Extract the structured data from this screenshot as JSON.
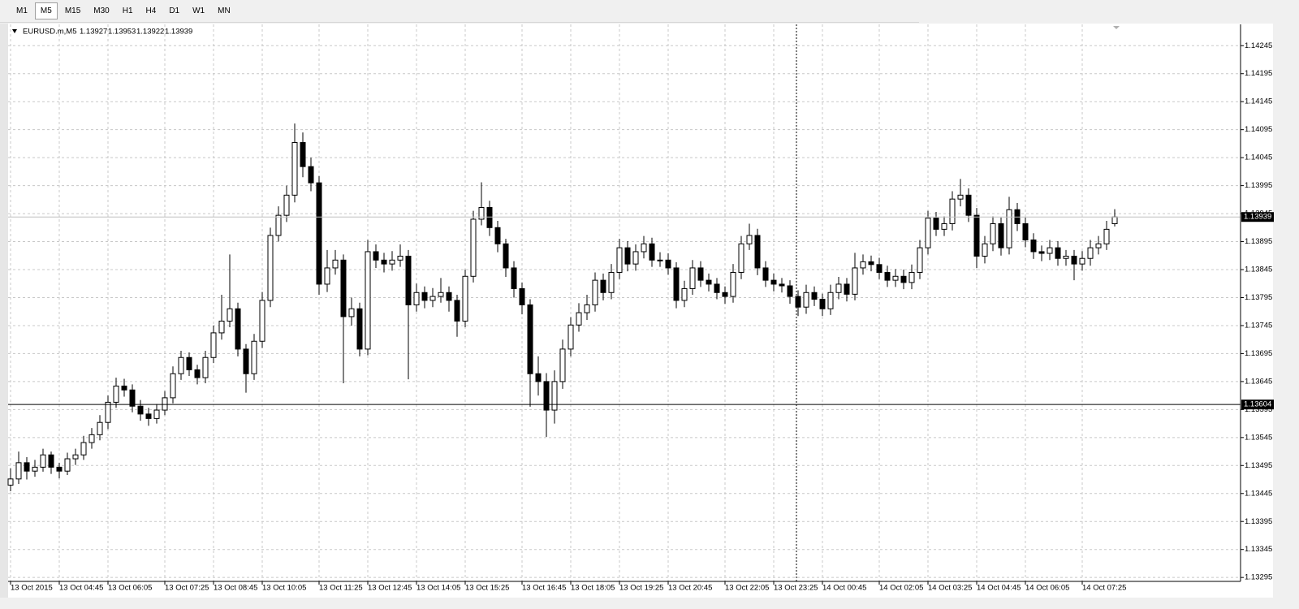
{
  "toolbar": {
    "timeframes": [
      "M1",
      "M5",
      "M15",
      "M30",
      "H1",
      "H4",
      "D1",
      "W1",
      "MN"
    ],
    "active": "M5"
  },
  "chart_data": {
    "type": "candlestick",
    "symbol": "EURUSD.m,M5",
    "bull_color": "#ffffff",
    "bear_color": "#000000",
    "wick_color": "#000000",
    "grid": true,
    "ylim": [
      1.13288,
      1.14286
    ],
    "yticks": [
      1.14245,
      1.14195,
      1.14145,
      1.14095,
      1.14045,
      1.13995,
      1.13945,
      1.13895,
      1.13845,
      1.13795,
      1.13745,
      1.13695,
      1.13645,
      1.13595,
      1.13545,
      1.13495,
      1.13445,
      1.13395,
      1.13345,
      1.13295
    ],
    "xlim": [
      -0.3,
      151.5
    ],
    "xticks": [
      {
        "value": 0,
        "label": "13 Oct 2015"
      },
      {
        "value": 6,
        "label": "13 Oct 04:45"
      },
      {
        "value": 12,
        "label": "13 Oct 06:05"
      },
      {
        "value": 19,
        "label": "13 Oct 07:25"
      },
      {
        "value": 25,
        "label": "13 Oct 08:45"
      },
      {
        "value": 31,
        "label": "13 Oct 10:05"
      },
      {
        "value": 38,
        "label": "13 Oct 11:25"
      },
      {
        "value": 44,
        "label": "13 Oct 12:45"
      },
      {
        "value": 50,
        "label": "13 Oct 14:05"
      },
      {
        "value": 56,
        "label": "13 Oct 15:25"
      },
      {
        "value": 63,
        "label": "13 Oct 16:45"
      },
      {
        "value": 69,
        "label": "13 Oct 18:05"
      },
      {
        "value": 75,
        "label": "13 Oct 19:25"
      },
      {
        "value": 81,
        "label": "13 Oct 20:45"
      },
      {
        "value": 88,
        "label": "13 Oct 22:05"
      },
      {
        "value": 94,
        "label": "13 Oct 23:25"
      },
      {
        "value": 100,
        "label": "14 Oct 00:45"
      },
      {
        "value": 107,
        "label": "14 Oct 02:05"
      },
      {
        "value": 113,
        "label": "14 Oct 03:25"
      },
      {
        "value": 119,
        "label": "14 Oct 04:45"
      },
      {
        "value": 125,
        "label": "14 Oct 06:05"
      },
      {
        "value": 132,
        "label": "14 Oct 07:25"
      }
    ],
    "level_line": 1.13604,
    "open": [
      1.1346,
      1.13471,
      1.135,
      1.13485,
      1.13492,
      1.13514,
      1.13492,
      1.13485,
      1.13507,
      1.13514,
      1.13536,
      1.1355,
      1.13572,
      1.13608,
      1.13637,
      1.1363,
      1.13601,
      1.13587,
      1.13579,
      1.13594,
      1.13616,
      1.13659,
      1.13688,
      1.13666,
      1.13652,
      1.13688,
      1.13732,
      1.13753,
      1.13775,
      1.13703,
      1.13659,
      1.13717,
      1.1379,
      1.13906,
      1.13942,
      1.13978,
      1.14072,
      1.14029,
      1.14,
      1.13819,
      1.13848,
      1.13862,
      1.13761,
      1.13775,
      1.13703,
      1.13877,
      1.13862,
      1.13855,
      1.13862,
      1.13869,
      1.13782,
      1.13804,
      1.1379,
      1.13797,
      1.13804,
      1.1379,
      1.13753,
      1.13833,
      1.13935,
      1.13956,
      1.1392,
      1.13891,
      1.13848,
      1.13811,
      1.13782,
      1.13659,
      1.13645,
      1.13594,
      1.13645,
      1.13703,
      1.13746,
      1.13768,
      1.13782,
      1.13826,
      1.13804,
      1.1384,
      1.13884,
      1.13855,
      1.13877,
      1.13891,
      1.13862,
      1.13862,
      1.13848,
      1.1379,
      1.13811,
      1.13848,
      1.13826,
      1.13819,
      1.13804,
      1.13797,
      1.1384,
      1.13891,
      1.13906,
      1.13848,
      1.13826,
      1.13819,
      1.13816,
      1.13797,
      1.13778,
      1.13804,
      1.13792,
      1.13775,
      1.13804,
      1.13819,
      1.13801,
      1.13848,
      1.13859,
      1.13854,
      1.1384,
      1.13826,
      1.13833,
      1.13822,
      1.1384,
      1.13884,
      1.13937,
      1.13917,
      1.13927,
      1.13971,
      1.13978,
      1.13942,
      1.13869,
      1.13891,
      1.13927,
      1.13884,
      1.13952,
      1.13927,
      1.13898,
      1.13877,
      1.13874,
      1.13884,
      1.13865,
      1.13869,
      1.13855,
      1.13865,
      1.13884,
      1.13891,
      1.13927
    ],
    "high": [
      1.1349,
      1.1352,
      1.1351,
      1.13505,
      1.13525,
      1.1352,
      1.135,
      1.13518,
      1.13525,
      1.13548,
      1.13562,
      1.13585,
      1.1362,
      1.13652,
      1.1365,
      1.1364,
      1.13612,
      1.13598,
      1.13605,
      1.13628,
      1.13672,
      1.137,
      1.13697,
      1.13675,
      1.137,
      1.13745,
      1.138,
      1.13872,
      1.13786,
      1.13712,
      1.1373,
      1.13805,
      1.1392,
      1.13958,
      1.13995,
      1.14106,
      1.1409,
      1.14045,
      1.14012,
      1.1388,
      1.1388,
      1.13872,
      1.13795,
      1.13786,
      1.13898,
      1.1389,
      1.13875,
      1.13878,
      1.1389,
      1.1388,
      1.1382,
      1.13815,
      1.13812,
      1.1383,
      1.13815,
      1.138,
      1.13845,
      1.1395,
      1.14001,
      1.13968,
      1.13932,
      1.139,
      1.1386,
      1.13822,
      1.13792,
      1.1369,
      1.1366,
      1.13665,
      1.1372,
      1.1376,
      1.13785,
      1.138,
      1.1384,
      1.13838,
      1.13855,
      1.139,
      1.13896,
      1.1389,
      1.13905,
      1.13902,
      1.13876,
      1.13874,
      1.13858,
      1.13825,
      1.13862,
      1.1386,
      1.13838,
      1.1383,
      1.13815,
      1.13855,
      1.13905,
      1.13927,
      1.13918,
      1.1386,
      1.13838,
      1.1383,
      1.13826,
      1.13808,
      1.13818,
      1.13815,
      1.13802,
      1.13818,
      1.13832,
      1.1383,
      1.13875,
      1.13872,
      1.1387,
      1.13866,
      1.13852,
      1.13846,
      1.13845,
      1.13854,
      1.13898,
      1.1395,
      1.13948,
      1.1394,
      1.13985,
      1.14007,
      1.1399,
      1.13955,
      1.13905,
      1.1394,
      1.13938,
      1.13975,
      1.13964,
      1.13938,
      1.1391,
      1.13888,
      1.13898,
      1.13896,
      1.1388,
      1.1388,
      1.13878,
      1.13898,
      1.13905,
      1.13932,
      1.13953
    ],
    "low": [
      1.13449,
      1.13462,
      1.1347,
      1.13475,
      1.13484,
      1.1348,
      1.13472,
      1.13478,
      1.13496,
      1.13505,
      1.13525,
      1.1354,
      1.1356,
      1.13598,
      1.13618,
      1.1359,
      1.13575,
      1.13566,
      1.1357,
      1.13585,
      1.13606,
      1.13648,
      1.13655,
      1.1364,
      1.13642,
      1.13678,
      1.1372,
      1.13742,
      1.1369,
      1.13625,
      1.13648,
      1.13705,
      1.13778,
      1.13895,
      1.1393,
      1.13965,
      1.1401,
      1.13985,
      1.138,
      1.13805,
      1.13836,
      1.13642,
      1.13745,
      1.1369,
      1.13692,
      1.13848,
      1.1384,
      1.13843,
      1.1385,
      1.13649,
      1.1377,
      1.13776,
      1.13778,
      1.13786,
      1.1377,
      1.13725,
      1.13742,
      1.13822,
      1.13924,
      1.13905,
      1.13876,
      1.13832,
      1.13795,
      1.13765,
      1.136,
      1.1362,
      1.13546,
      1.1357,
      1.13632,
      1.1369,
      1.13734,
      1.13755,
      1.1377,
      1.1379,
      1.13792,
      1.13828,
      1.13842,
      1.13843,
      1.13865,
      1.1385,
      1.1385,
      1.13836,
      1.13776,
      1.13778,
      1.138,
      1.13814,
      1.13806,
      1.13792,
      1.13784,
      1.13786,
      1.13828,
      1.1388,
      1.13835,
      1.13814,
      1.13806,
      1.13804,
      1.13784,
      1.13762,
      1.13766,
      1.1378,
      1.13762,
      1.13764,
      1.13792,
      1.13788,
      1.1379,
      1.13836,
      1.13842,
      1.13828,
      1.13814,
      1.13814,
      1.1381,
      1.1381,
      1.13828,
      1.13872,
      1.13905,
      1.13905,
      1.13915,
      1.13958,
      1.1393,
      1.13848,
      1.13856,
      1.13878,
      1.1387,
      1.13872,
      1.13914,
      1.13885,
      1.13864,
      1.1386,
      1.13862,
      1.13852,
      1.13852,
      1.13826,
      1.13843,
      1.13852,
      1.13872,
      1.1388,
      1.13922
    ],
    "close": [
      1.13471,
      1.135,
      1.13485,
      1.13492,
      1.13514,
      1.13492,
      1.13485,
      1.13507,
      1.13514,
      1.13536,
      1.1355,
      1.13572,
      1.13608,
      1.13637,
      1.1363,
      1.13601,
      1.13587,
      1.13579,
      1.13594,
      1.13616,
      1.13659,
      1.13688,
      1.13666,
      1.13652,
      1.13688,
      1.13732,
      1.13753,
      1.13775,
      1.13703,
      1.13659,
      1.13717,
      1.1379,
      1.13906,
      1.13942,
      1.13978,
      1.14072,
      1.14029,
      1.14,
      1.13819,
      1.13848,
      1.13862,
      1.13761,
      1.13775,
      1.13703,
      1.13877,
      1.13862,
      1.13855,
      1.13862,
      1.13869,
      1.13782,
      1.13804,
      1.1379,
      1.13797,
      1.13804,
      1.1379,
      1.13753,
      1.13833,
      1.13935,
      1.13956,
      1.1392,
      1.13891,
      1.13848,
      1.13811,
      1.13782,
      1.13659,
      1.13645,
      1.13594,
      1.13645,
      1.13703,
      1.13746,
      1.13768,
      1.13782,
      1.13826,
      1.13804,
      1.1384,
      1.13884,
      1.13855,
      1.13877,
      1.13891,
      1.13862,
      1.13862,
      1.13848,
      1.1379,
      1.13811,
      1.13848,
      1.13826,
      1.13819,
      1.13804,
      1.13797,
      1.1384,
      1.13891,
      1.13906,
      1.13848,
      1.13826,
      1.13819,
      1.13816,
      1.13797,
      1.13778,
      1.13804,
      1.13792,
      1.13775,
      1.13804,
      1.13819,
      1.13801,
      1.13848,
      1.13859,
      1.13854,
      1.1384,
      1.13826,
      1.13833,
      1.13822,
      1.1384,
      1.13884,
      1.13937,
      1.13917,
      1.13927,
      1.13971,
      1.13978,
      1.13942,
      1.13869,
      1.13891,
      1.13927,
      1.13884,
      1.13952,
      1.13927,
      1.13898,
      1.13877,
      1.13874,
      1.13884,
      1.13865,
      1.13869,
      1.13855,
      1.13865,
      1.13884,
      1.13891,
      1.13917,
      1.13939
    ]
  }
}
